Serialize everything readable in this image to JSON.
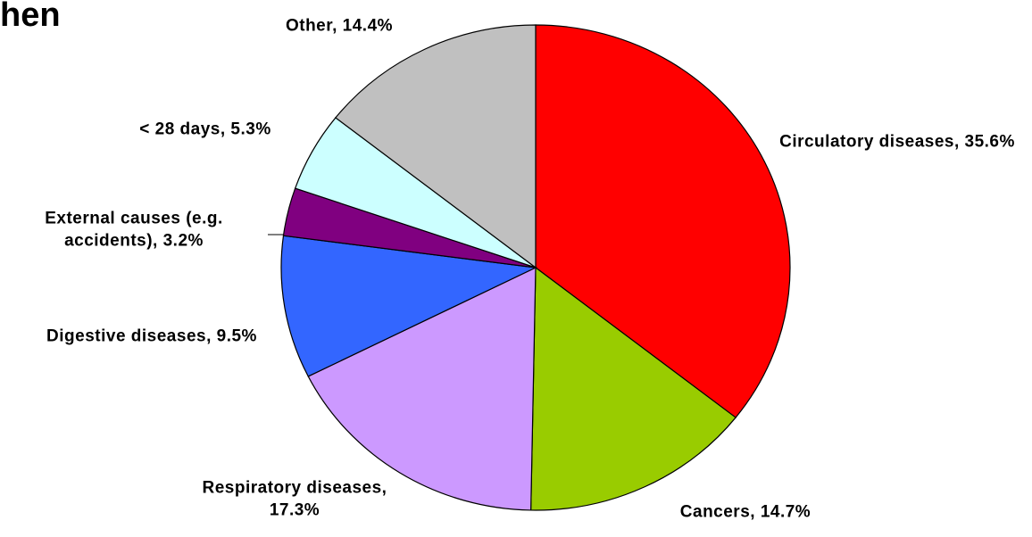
{
  "chart_data": {
    "type": "pie",
    "title": "hen",
    "values": [
      35.6,
      14.7,
      17.3,
      9.5,
      3.2,
      5.3,
      14.4
    ],
    "value_labels": [
      "Circulatory diseases, 35.6%",
      "Cancers, 14.7%",
      "Respiratory diseases, 17.3%",
      "Digestive diseases, 9.5%",
      "External causes (e.g. accidents), 3.2%",
      "< 28 days, 5.3%",
      "Other, 14.4%"
    ],
    "colors": [
      "#ff0000",
      "#99cc00",
      "#cc99ff",
      "#3366ff",
      "#800080",
      "#ccffff",
      "#c0c0c0"
    ]
  }
}
